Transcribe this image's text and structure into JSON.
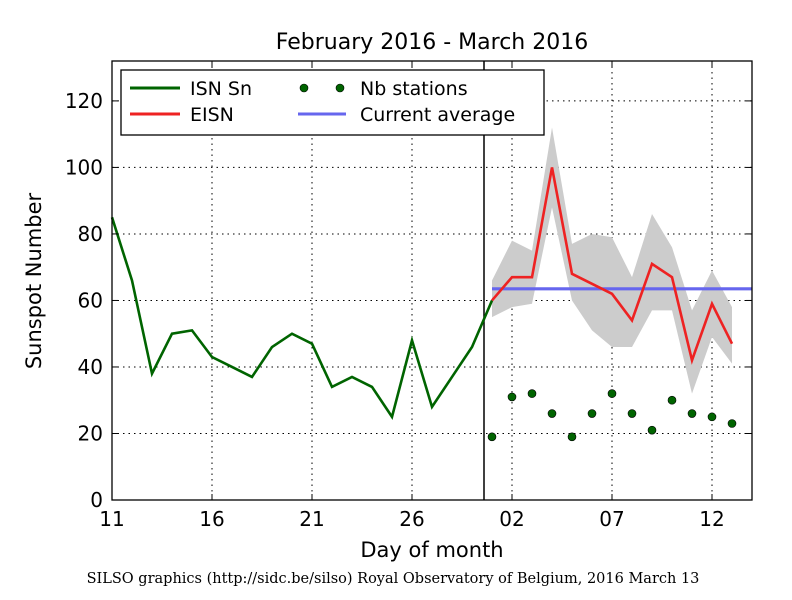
{
  "chart_data": {
    "type": "line",
    "title": "February 2016 - March 2016",
    "xlabel": "Day of month",
    "ylabel": "Sunspot Number",
    "xlim": [
      0,
      32
    ],
    "ylim": [
      0,
      132
    ],
    "yticks": [
      0,
      20,
      40,
      60,
      80,
      100,
      120
    ],
    "xticks": [
      {
        "day": 0,
        "label": "11"
      },
      {
        "day": 5,
        "label": "16"
      },
      {
        "day": 10,
        "label": "21"
      },
      {
        "day": 15,
        "label": "26"
      },
      {
        "day": 20,
        "label": "02"
      },
      {
        "day": 25,
        "label": "07"
      },
      {
        "day": 30,
        "label": "12"
      }
    ],
    "grid": true,
    "month_boundary_day": 18.6,
    "legend_position": "top-left",
    "legend": [
      {
        "label": "ISN Sn",
        "kind": "line",
        "color": "#006400"
      },
      {
        "label": "Nb stations",
        "kind": "dots",
        "color": "#006400"
      },
      {
        "label": "EISN",
        "kind": "line",
        "color": "#ee2222"
      },
      {
        "label": "Current average",
        "kind": "line",
        "color": "#6666ee"
      }
    ],
    "series": [
      {
        "name": "ISN Sn",
        "color": "#006400",
        "x": [
          0,
          1,
          2,
          3,
          4,
          5,
          6,
          7,
          8,
          9,
          10,
          11,
          12,
          13,
          14,
          15,
          16,
          17,
          18,
          19
        ],
        "y": [
          85,
          66,
          38,
          50,
          51,
          43,
          40,
          37,
          46,
          50,
          47,
          34,
          37,
          34,
          25,
          48,
          28,
          37,
          46,
          60
        ]
      },
      {
        "name": "EISN",
        "color": "#ee2222",
        "x": [
          19,
          20,
          21,
          22,
          23,
          24,
          25,
          26,
          27,
          28,
          29,
          30,
          31
        ],
        "y": [
          60,
          67,
          67,
          100,
          68,
          65,
          62,
          54,
          71,
          67,
          42,
          59,
          47
        ],
        "band_upper": [
          66,
          78,
          75,
          112,
          77,
          80,
          79,
          67,
          86,
          76,
          57,
          69,
          58
        ],
        "band_lower": [
          55,
          58,
          59,
          88,
          60,
          51,
          46,
          46,
          57,
          57,
          32,
          49,
          41
        ]
      },
      {
        "name": "Nb stations",
        "color": "#006400",
        "x": [
          19,
          20,
          21,
          22,
          23,
          24,
          25,
          26,
          27,
          28,
          29,
          30,
          31
        ],
        "y": [
          19,
          31,
          32,
          26,
          19,
          26,
          32,
          26,
          21,
          30,
          26,
          25,
          23
        ]
      },
      {
        "name": "Current average",
        "color": "#6666ee",
        "x": [
          19,
          32
        ],
        "y": [
          63.5,
          63.5
        ]
      }
    ],
    "band_color": "#cccccc"
  },
  "credit": "SILSO graphics (http://sidc.be/silso) Royal Observatory of Belgium, 2016 March 13"
}
